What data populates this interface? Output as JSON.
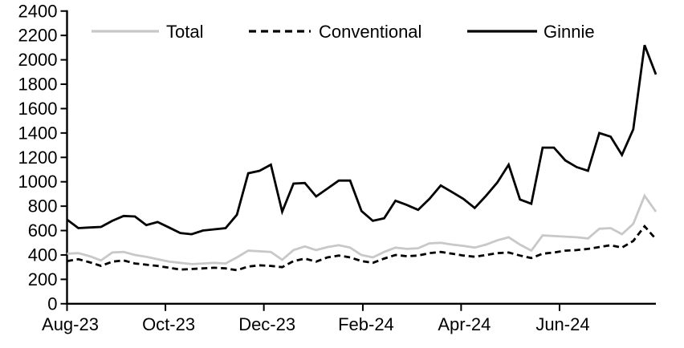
{
  "chart_data": {
    "type": "line",
    "title": "",
    "xlabel": "",
    "ylabel": "",
    "x_unit": "weekly",
    "x_ticks": [
      {
        "label": "Aug-23",
        "pos": 0
      },
      {
        "label": "Oct-23",
        "pos": 8.69
      },
      {
        "label": "Dec-23",
        "pos": 17.38
      },
      {
        "label": "Feb-24",
        "pos": 26.12
      },
      {
        "label": "Apr-24",
        "pos": 34.8
      },
      {
        "label": "Jun-24",
        "pos": 43.49
      }
    ],
    "y_axis": {
      "min": 0,
      "max": 2400,
      "step": 200
    },
    "grid": false,
    "legend_position": "top",
    "series": [
      {
        "name": "Total",
        "color": "#c8c8c8",
        "style": "solid",
        "values": [
          410,
          415,
          390,
          355,
          420,
          425,
          400,
          385,
          365,
          345,
          335,
          325,
          330,
          335,
          330,
          380,
          435,
          430,
          425,
          360,
          440,
          470,
          440,
          465,
          480,
          460,
          400,
          380,
          425,
          460,
          450,
          455,
          495,
          500,
          485,
          475,
          460,
          485,
          520,
          545,
          485,
          435,
          560,
          555,
          550,
          545,
          535,
          615,
          620,
          570,
          655,
          885,
          755
        ]
      },
      {
        "name": "Conventional",
        "color": "#000000",
        "style": "dashed",
        "values": [
          350,
          365,
          340,
          310,
          345,
          355,
          330,
          320,
          310,
          295,
          280,
          285,
          290,
          295,
          290,
          275,
          305,
          315,
          310,
          300,
          350,
          370,
          345,
          380,
          395,
          380,
          350,
          335,
          370,
          400,
          390,
          395,
          415,
          425,
          410,
          395,
          385,
          400,
          415,
          420,
          395,
          375,
          410,
          420,
          435,
          440,
          450,
          465,
          480,
          460,
          515,
          635,
          530
        ]
      },
      {
        "name": "Ginnie",
        "color": "#000000",
        "style": "solid",
        "values": [
          690,
          620,
          625,
          630,
          680,
          720,
          715,
          645,
          670,
          625,
          580,
          570,
          600,
          610,
          620,
          730,
          1070,
          1090,
          1140,
          755,
          985,
          990,
          880,
          945,
          1010,
          1010,
          760,
          680,
          700,
          845,
          810,
          770,
          860,
          970,
          915,
          860,
          785,
          885,
          995,
          1140,
          855,
          820,
          1280,
          1280,
          1175,
          1120,
          1090,
          1400,
          1370,
          1220,
          1430,
          2120,
          1880
        ]
      }
    ]
  }
}
